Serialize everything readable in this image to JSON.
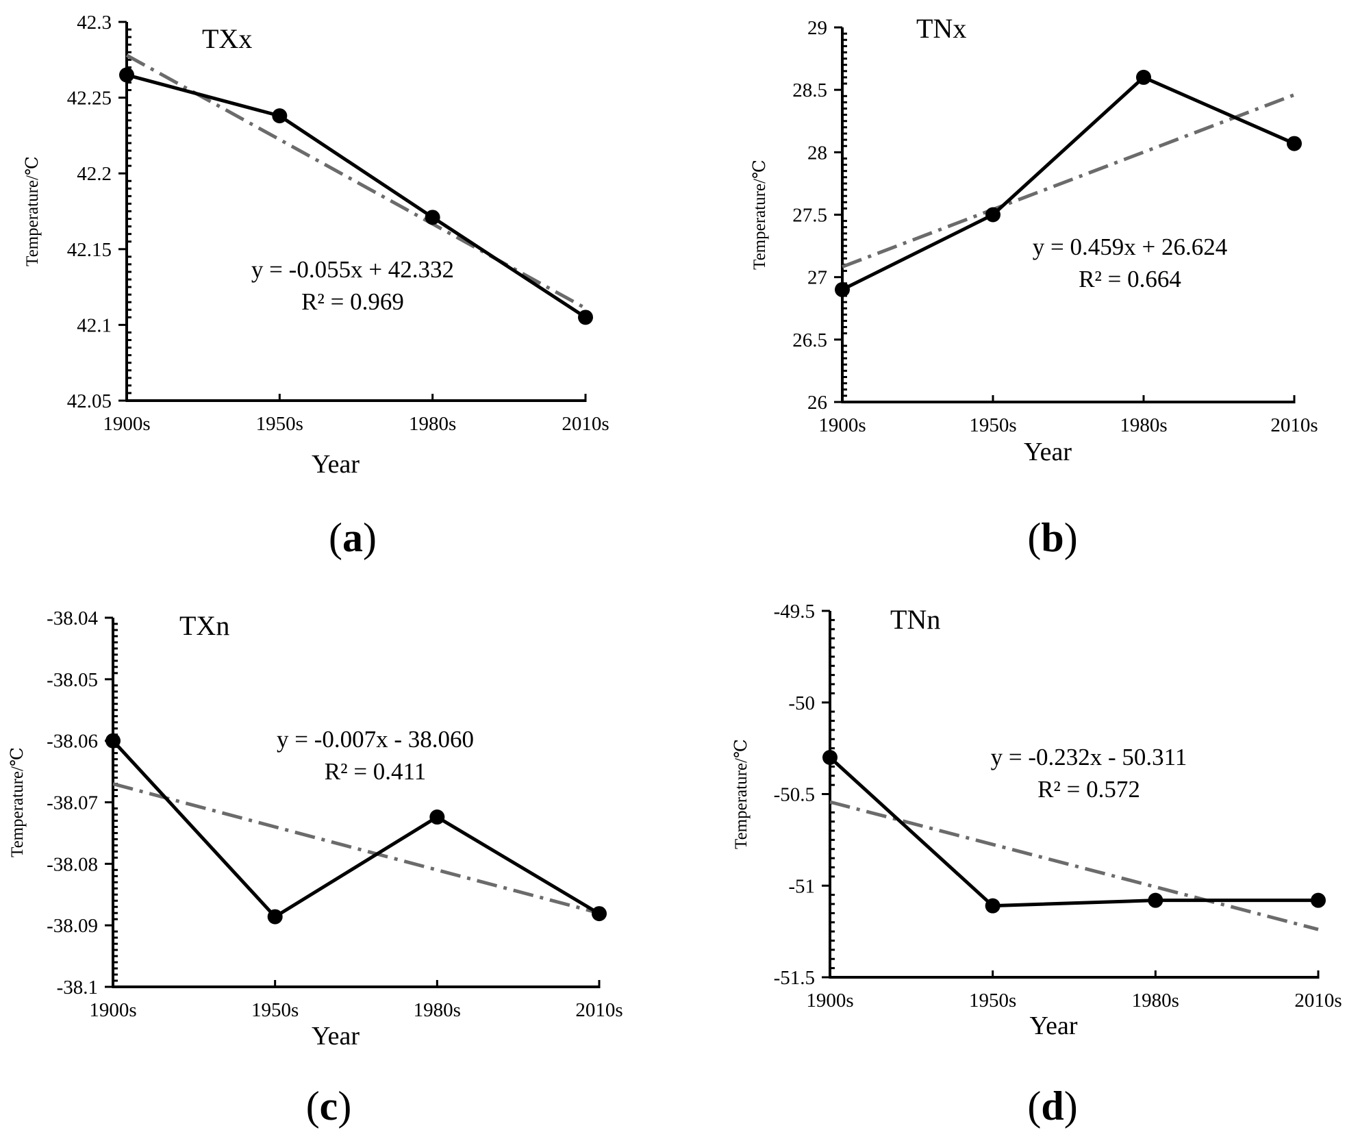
{
  "chart_data": [
    {
      "type": "line",
      "panel_label": "a",
      "title": "TXx",
      "categories": [
        "1900s",
        "1950s",
        "1980s",
        "2010s"
      ],
      "values": [
        42.265,
        42.238,
        42.171,
        42.105
      ],
      "trendline": {
        "start": 42.278,
        "end": 42.111
      },
      "equation": "y = -0.055x + 42.332",
      "r_squared": "R² = 0.969",
      "xlabel": "Year",
      "ylabel": "Temperature/℃",
      "ylim": [
        42.05,
        42.3
      ],
      "yticks": [
        "42.05",
        "42.1",
        "42.15",
        "42.2",
        "42.25",
        "42.3"
      ]
    },
    {
      "type": "line",
      "panel_label": "b",
      "title": "TNx",
      "categories": [
        "1900s",
        "1950s",
        "1980s",
        "2010s"
      ],
      "values": [
        26.9,
        27.5,
        28.6,
        28.07
      ],
      "trendline": {
        "start": 27.083,
        "end": 28.46
      },
      "equation": "y = 0.459x + 26.624",
      "r_squared": "R² = 0.664",
      "xlabel": "Year",
      "ylabel": "Temperature/℃",
      "ylim": [
        26,
        29
      ],
      "yticks": [
        "26",
        "26.5",
        "27",
        "27.5",
        "28",
        "28.5",
        "29"
      ]
    },
    {
      "type": "line",
      "panel_label": "c",
      "title": "TXn",
      "categories": [
        "1900s",
        "1950s",
        "1980s",
        "2010s"
      ],
      "values": [
        -38.06,
        -38.0886,
        -38.0724,
        -38.0881
      ],
      "trendline": {
        "start": -38.067,
        "end": -38.088
      },
      "equation": "y = -0.007x - 38.060",
      "r_squared": "R² = 0.411",
      "xlabel": "Year",
      "ylabel": "Temperature/℃",
      "ylim": [
        -38.1,
        -38.04
      ],
      "yticks": [
        "-38.1",
        "-38.09",
        "-38.08",
        "-38.07",
        "-38.06",
        "-38.05",
        "-38.04"
      ]
    },
    {
      "type": "line",
      "panel_label": "d",
      "title": "TNn",
      "categories": [
        "1900s",
        "1950s",
        "1980s",
        "2010s"
      ],
      "values": [
        -50.3,
        -51.11,
        -51.08,
        -51.08
      ],
      "trendline": {
        "start": -50.543,
        "end": -51.239
      },
      "equation": "y = -0.232x - 50.311",
      "r_squared": "R² = 0.572",
      "xlabel": "Year",
      "ylabel": "Temperature/℃",
      "ylim": [
        -51.5,
        -49.5
      ],
      "yticks": [
        "-51.5",
        "-51",
        "-50.5",
        "-50",
        "-49.5"
      ]
    }
  ]
}
